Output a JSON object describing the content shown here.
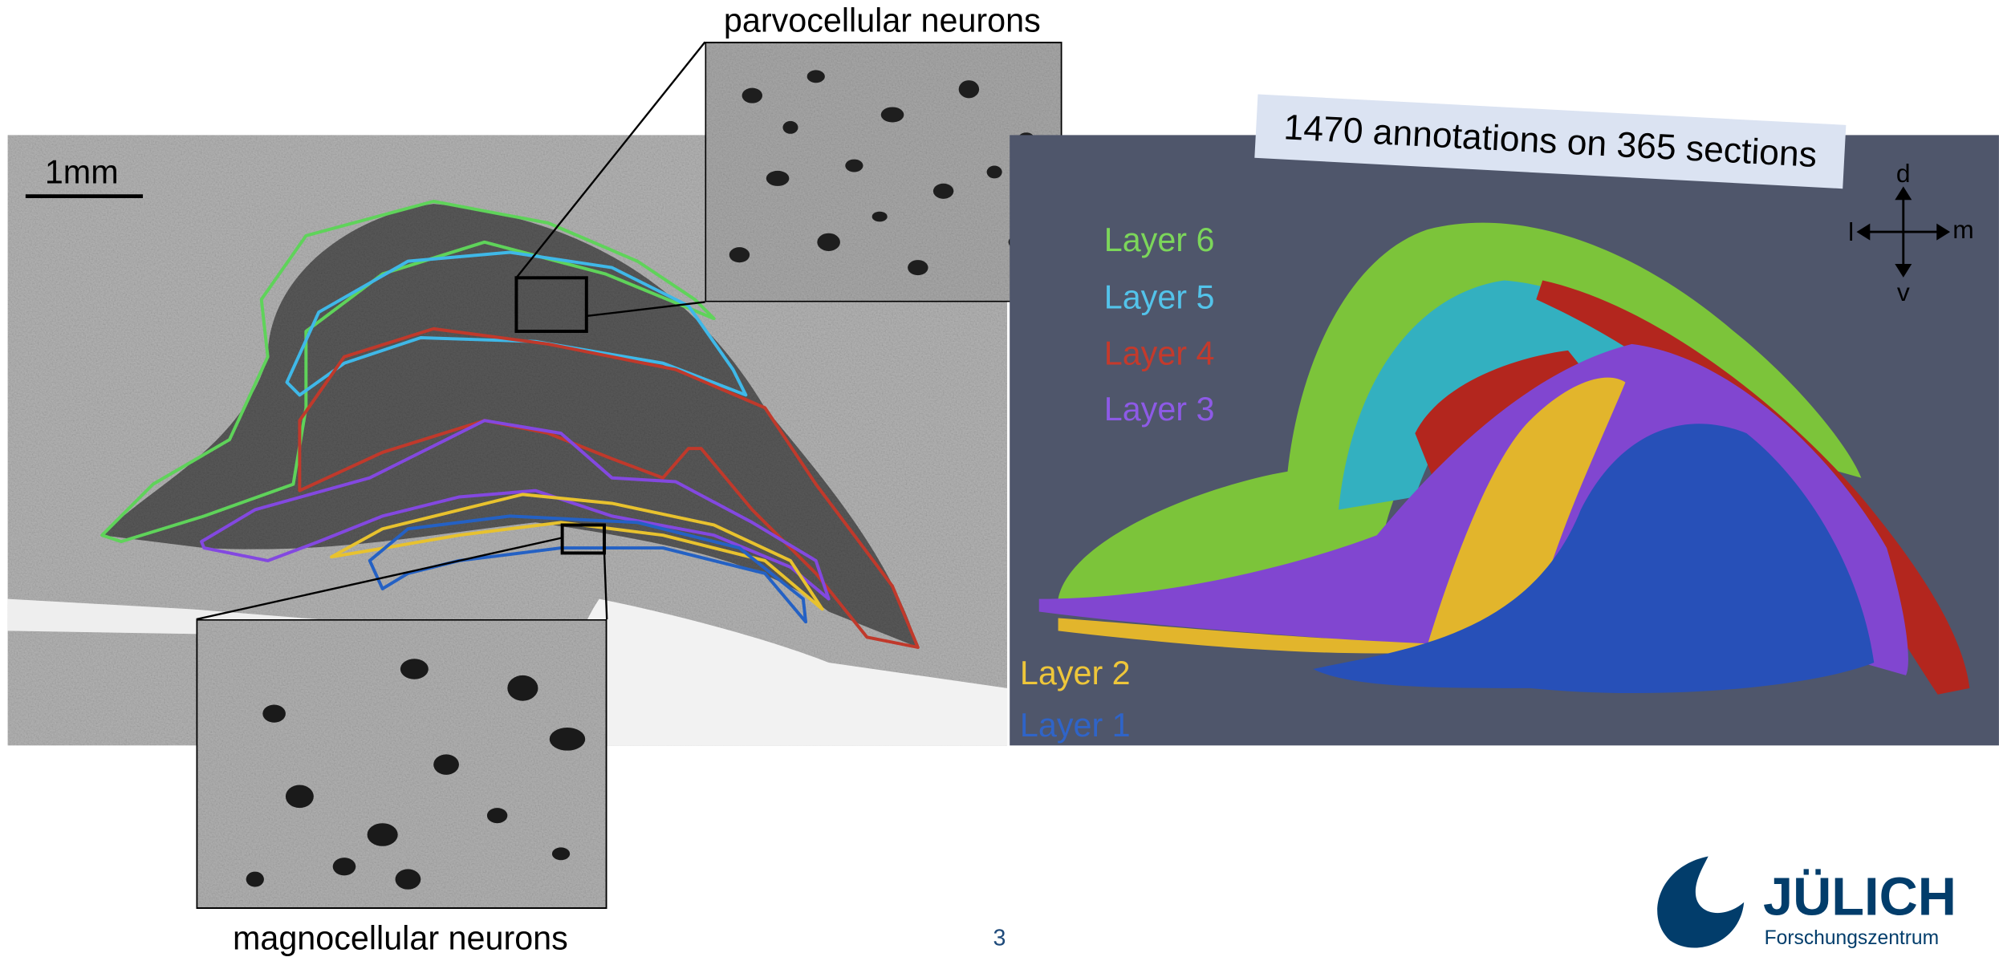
{
  "figure": {
    "parvo_label": "parvocellular neurons",
    "magno_label": "magnocellular neurons",
    "scale_bar": "1mm",
    "annotation_note": "1470 annotations on 365 sections",
    "layers": [
      "Layer 6",
      "Layer 5",
      "Layer 4",
      "Layer 3",
      "Layer 2",
      "Layer 1"
    ],
    "compass": {
      "dorsal": "d",
      "lateral": "l",
      "medial": "m",
      "ventral": "v"
    }
  },
  "page_number": "3",
  "logo": {
    "name": "JÜLICH",
    "subtitle": "Forschungszentrum"
  }
}
